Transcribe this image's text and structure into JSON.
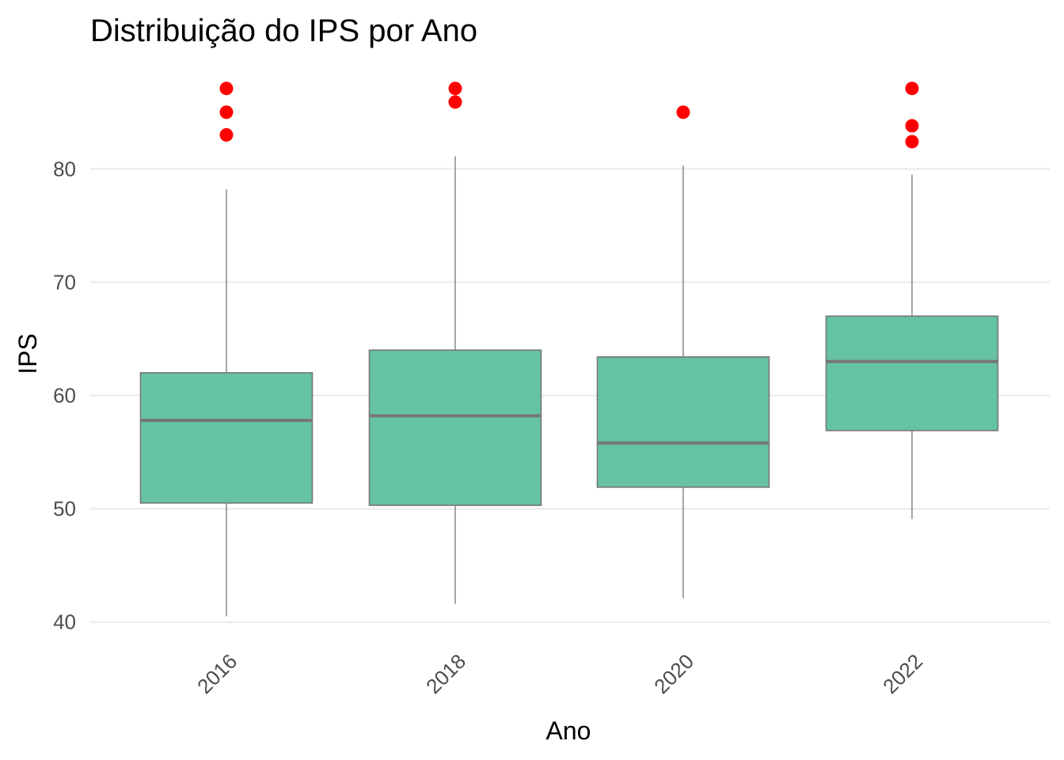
{
  "chart_data": {
    "type": "boxplot",
    "title": "Distribuição do IPS por Ano",
    "xlabel": "Ano",
    "ylabel": "IPS",
    "categories": [
      "2016",
      "2018",
      "2020",
      "2022"
    ],
    "y_ticks": [
      40,
      50,
      60,
      70,
      80
    ],
    "ylim": [
      38.5,
      90.5
    ],
    "grid": true,
    "boxes": [
      {
        "category": "2016",
        "whisker_low": 40.5,
        "q1": 50.5,
        "median": 57.8,
        "q3": 62.0,
        "whisker_high": 78.2,
        "outliers": [
          83.0,
          85.0,
          87.1
        ]
      },
      {
        "category": "2018",
        "whisker_low": 41.6,
        "q1": 50.3,
        "median": 58.2,
        "q3": 64.0,
        "whisker_high": 81.1,
        "outliers": [
          85.9,
          87.1
        ]
      },
      {
        "category": "2020",
        "whisker_low": 42.1,
        "q1": 51.9,
        "median": 55.8,
        "q3": 63.4,
        "whisker_high": 80.3,
        "outliers": [
          85.0
        ]
      },
      {
        "category": "2022",
        "whisker_low": 49.1,
        "q1": 56.9,
        "median": 63.0,
        "q3": 67.0,
        "whisker_high": 79.5,
        "outliers": [
          82.4,
          83.8,
          87.1
        ]
      }
    ],
    "colors": {
      "box_fill": "#66c2a5",
      "box_stroke": "#777777",
      "median": "#777777",
      "outlier": "#ff0000",
      "gridline": "#ebebeb"
    }
  }
}
